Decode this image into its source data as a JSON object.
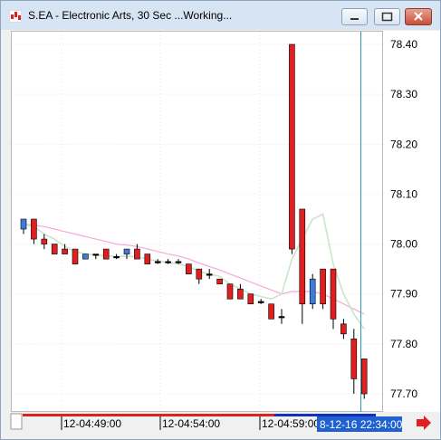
{
  "window": {
    "title": "S.EA - Electronic Arts, 30 Sec ...Working...",
    "buttons": [
      "minimize",
      "maximize",
      "close"
    ]
  },
  "colors": {
    "up_candle": "#3c7dd9",
    "down_candle": "#e02020",
    "doji": "#000000",
    "ma_fast": "#c8e6c8",
    "ma_slow": "#f5a8d8",
    "cursor_line": "#2a9ab5",
    "cursor_label_bg": "#2060d0",
    "arrow": "#e02020"
  },
  "chart_data": {
    "type": "candlestick",
    "ylim": [
      77.66,
      78.44
    ],
    "y_ticks": [
      78.4,
      78.3,
      78.2,
      78.1,
      78.0,
      77.9,
      77.8,
      77.7
    ],
    "y_tick_labels": [
      "78.40",
      "78.30",
      "78.20",
      "78.10",
      "78.00",
      "77.90",
      "77.80",
      "77.70"
    ],
    "x_labels": [
      "12-04:49:00",
      "12-04:54:00",
      "12-04:59:00"
    ],
    "cursor_label": "8-12-16 22:34:00",
    "candles": [
      {
        "o": 78.03,
        "h": 78.05,
        "l": 78.02,
        "c": 78.05
      },
      {
        "o": 78.05,
        "h": 78.05,
        "l": 78.0,
        "c": 78.01
      },
      {
        "o": 78.01,
        "h": 78.02,
        "l": 77.99,
        "c": 78.0
      },
      {
        "o": 78.0,
        "h": 78.0,
        "l": 77.98,
        "c": 77.98
      },
      {
        "o": 77.99,
        "h": 78.0,
        "l": 77.98,
        "c": 77.98
      },
      {
        "o": 77.99,
        "h": 77.99,
        "l": 77.96,
        "c": 77.96
      },
      {
        "o": 77.97,
        "h": 77.98,
        "l": 77.97,
        "c": 77.98
      },
      {
        "o": 77.98,
        "h": 77.98,
        "l": 77.97,
        "c": 77.98
      },
      {
        "o": 77.99,
        "h": 77.99,
        "l": 77.97,
        "c": 77.97
      },
      {
        "o": 77.975,
        "h": 77.98,
        "l": 77.97,
        "c": 77.975
      },
      {
        "o": 77.98,
        "h": 77.99,
        "l": 77.97,
        "c": 77.99
      },
      {
        "o": 77.99,
        "h": 78.0,
        "l": 77.97,
        "c": 77.97
      },
      {
        "o": 77.98,
        "h": 77.98,
        "l": 77.96,
        "c": 77.96
      },
      {
        "o": 77.965,
        "h": 77.97,
        "l": 77.96,
        "c": 77.965
      },
      {
        "o": 77.965,
        "h": 77.97,
        "l": 77.96,
        "c": 77.965
      },
      {
        "o": 77.965,
        "h": 77.97,
        "l": 77.96,
        "c": 77.965
      },
      {
        "o": 77.96,
        "h": 77.96,
        "l": 77.94,
        "c": 77.94
      },
      {
        "o": 77.95,
        "h": 77.95,
        "l": 77.92,
        "c": 77.93
      },
      {
        "o": 77.94,
        "h": 77.95,
        "l": 77.93,
        "c": 77.94
      },
      {
        "o": 77.93,
        "h": 77.93,
        "l": 77.92,
        "c": 77.92
      },
      {
        "o": 77.92,
        "h": 77.92,
        "l": 77.89,
        "c": 77.89
      },
      {
        "o": 77.91,
        "h": 77.92,
        "l": 77.89,
        "c": 77.89
      },
      {
        "o": 77.9,
        "h": 77.9,
        "l": 77.88,
        "c": 77.88
      },
      {
        "o": 77.885,
        "h": 77.89,
        "l": 77.88,
        "c": 77.885
      },
      {
        "o": 77.88,
        "h": 77.88,
        "l": 77.85,
        "c": 77.85
      },
      {
        "o": 77.855,
        "h": 77.87,
        "l": 77.84,
        "c": 77.855
      },
      {
        "o": 78.4,
        "h": 78.4,
        "l": 77.98,
        "c": 77.99
      },
      {
        "o": 78.07,
        "h": 78.07,
        "l": 77.84,
        "c": 77.88
      },
      {
        "o": 77.88,
        "h": 77.94,
        "l": 77.87,
        "c": 77.93
      },
      {
        "o": 77.95,
        "h": 77.95,
        "l": 77.87,
        "c": 77.88
      },
      {
        "o": 77.95,
        "h": 77.95,
        "l": 77.83,
        "c": 77.85
      },
      {
        "o": 77.84,
        "h": 77.85,
        "l": 77.81,
        "c": 77.82
      },
      {
        "o": 77.81,
        "h": 77.83,
        "l": 77.7,
        "c": 77.73
      },
      {
        "o": 77.77,
        "h": 77.77,
        "l": 77.69,
        "c": 77.7
      }
    ],
    "ma_fast": [
      78.04,
      78.035,
      78.02,
      78.01,
      77.995,
      77.985,
      77.98,
      77.978,
      77.976,
      77.975,
      77.976,
      77.974,
      77.97,
      77.966,
      77.963,
      77.96,
      77.955,
      77.945,
      77.94,
      77.935,
      77.92,
      77.91,
      77.9,
      77.895,
      77.89,
      77.9,
      77.97,
      78.01,
      78.05,
      78.06,
      77.96,
      77.9,
      77.86,
      77.83
    ],
    "ma_slow": [
      78.04,
      78.038,
      78.035,
      78.03,
      78.025,
      78.02,
      78.015,
      78.01,
      78.005,
      78.0,
      77.998,
      77.995,
      77.99,
      77.985,
      77.98,
      77.976,
      77.97,
      77.962,
      77.955,
      77.948,
      77.94,
      77.932,
      77.924,
      77.916,
      77.908,
      77.9,
      77.905,
      77.905,
      77.905,
      77.9,
      77.89,
      77.88,
      77.87,
      77.86
    ]
  }
}
